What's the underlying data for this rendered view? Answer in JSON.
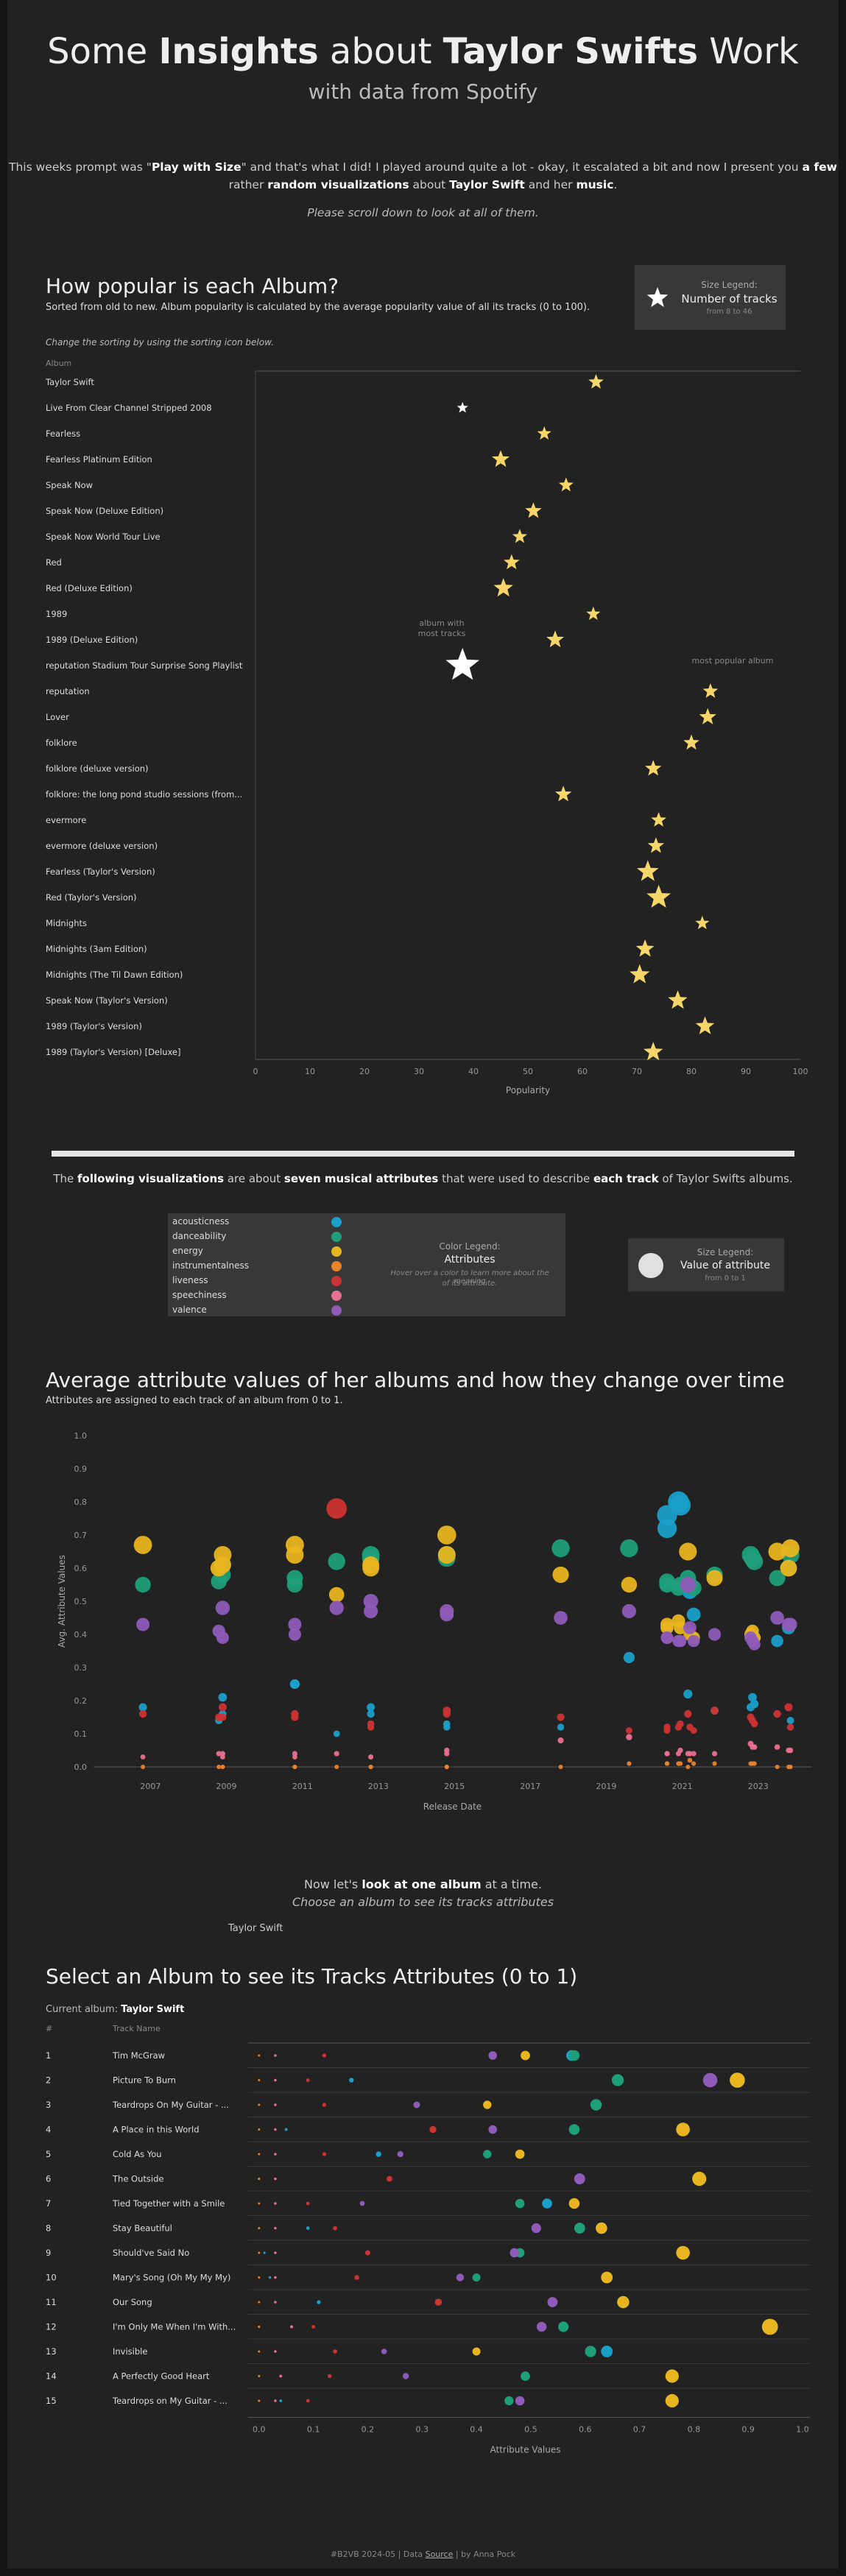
{
  "header": {
    "title_pre": "Some ",
    "title_b1": "Insights",
    "title_mid": " about ",
    "title_b2": "Taylor Swifts",
    "title_post": " Work",
    "subtitle": "with data from Spotify"
  },
  "intro": {
    "l1_a": "This weeks prompt was \"",
    "l1_b": "Play with Size",
    "l1_c": "\" and that's what I did! I played around quite a lot - okay, it escalated a bit and now I present you ",
    "l1_d": "a few",
    "l2_a": "rather ",
    "l2_b": "random visualizations",
    "l2_c": " about ",
    "l2_d": "Taylor Swift",
    "l2_e": " and her ",
    "l2_f": "music",
    "l2_g": ".",
    "hint": "Please scroll down to look at all of them."
  },
  "section1": {
    "title": "How popular is each Album?",
    "desc": "Sorted from old to new. Album popularity is calculated by the average popularity value of all its tracks (0 to 100).",
    "hint": "Change the sorting by using the sorting icon below.",
    "legend": {
      "title": "Size Legend:",
      "main": "Number of tracks",
      "sub": "from 8 to 46"
    },
    "annotation_most_tracks": [
      "album with",
      "most tracks"
    ],
    "annotation_most_popular": "most popular album"
  },
  "attributes": {
    "intro_a": "The ",
    "intro_b": "following visualizations",
    "intro_c": " are about ",
    "intro_d": "seven musical attributes",
    "intro_e": " that were used to describe ",
    "intro_f": "each track",
    "intro_g": " of Taylor Swifts albums.",
    "legend_title": "Color Legend:",
    "legend_main": "Attributes",
    "legend_hint1": "Hover over a color to learn more about the meaning",
    "legend_hint2": "of its attribute.",
    "size_legend": {
      "title": "Size Legend:",
      "main": "Value of attribute",
      "sub": "from 0 to 1"
    },
    "items": [
      {
        "name": "acousticness",
        "color": "#1a9fc9"
      },
      {
        "name": "danceability",
        "color": "#1f9e7a"
      },
      {
        "name": "energy",
        "color": "#e8b520"
      },
      {
        "name": "instrumentalness",
        "color": "#e8832a"
      },
      {
        "name": "liveness",
        "color": "#cc3333"
      },
      {
        "name": "speechiness",
        "color": "#e87090"
      },
      {
        "name": "valence",
        "color": "#8e5bb8"
      }
    ]
  },
  "section2": {
    "title": "Average attribute values of her albums and how they change over time",
    "desc": "Attributes are assigned to each track of an album  from 0 to 1."
  },
  "section3": {
    "intro1_a": "Now let's ",
    "intro1_b": "look at one album",
    "intro1_c": " at a time.",
    "intro2": "Choose an album to see its tracks attributes",
    "selector_value": "Taylor Swift",
    "title": "Select an Album to see its Tracks Attributes (0 to 1)",
    "current_label": "Current album: ",
    "current_value": "Taylor Swift"
  },
  "footer": {
    "a": "#B2VB 2024-05 | Data ",
    "link": "Source",
    "b": " | by Anna Pock"
  },
  "chart_data": [
    {
      "type": "scatter",
      "title": "How popular is each Album?",
      "xlabel": "Popularity",
      "ylabel": "Album",
      "xlim": [
        0,
        100
      ],
      "xticks": [
        0,
        10,
        20,
        30,
        40,
        50,
        60,
        70,
        80,
        90,
        100
      ],
      "albums": [
        {
          "name": "Taylor Swift",
          "popularity": 62.5,
          "tracks": 15
        },
        {
          "name": "Live From Clear Channel Stripped 2008",
          "popularity": 38,
          "tracks": 8
        },
        {
          "name": "Fearless",
          "popularity": 53,
          "tracks": 13
        },
        {
          "name": "Fearless Platinum Edition",
          "popularity": 45,
          "tracks": 19
        },
        {
          "name": "Speak Now",
          "popularity": 57,
          "tracks": 14
        },
        {
          "name": "Speak Now (Deluxe Edition)",
          "popularity": 51,
          "tracks": 17
        },
        {
          "name": "Speak Now World Tour Live",
          "popularity": 48.5,
          "tracks": 14
        },
        {
          "name": "Red",
          "popularity": 47,
          "tracks": 16
        },
        {
          "name": "Red (Deluxe Edition)",
          "popularity": 45.5,
          "tracks": 22
        },
        {
          "name": "1989",
          "popularity": 62,
          "tracks": 13
        },
        {
          "name": "1989 (Deluxe Edition)",
          "popularity": 55,
          "tracks": 19
        },
        {
          "name": "reputation Stadium Tour Surprise Song Playlist",
          "popularity": 38,
          "tracks": 46
        },
        {
          "name": "reputation",
          "popularity": 83.5,
          "tracks": 15
        },
        {
          "name": "Lover",
          "popularity": 83,
          "tracks": 18
        },
        {
          "name": "folklore",
          "popularity": 80,
          "tracks": 16
        },
        {
          "name": "folklore (deluxe version)",
          "popularity": 73,
          "tracks": 17
        },
        {
          "name": "folklore: the long pond studio sessions (from the Disney+ special) [deluxe edition]",
          "popularity": 56.5,
          "tracks": 17
        },
        {
          "name": "evermore",
          "popularity": 74,
          "tracks": 15
        },
        {
          "name": "evermore (deluxe version)",
          "popularity": 73.5,
          "tracks": 17
        },
        {
          "name": "Fearless (Taylor's Version)",
          "popularity": 72,
          "tracks": 26
        },
        {
          "name": "Red (Taylor's Version)",
          "popularity": 74,
          "tracks": 30
        },
        {
          "name": "Midnights",
          "popularity": 82,
          "tracks": 13
        },
        {
          "name": "Midnights (3am Edition)",
          "popularity": 71.5,
          "tracks": 20
        },
        {
          "name": "Midnights (The Til Dawn Edition)",
          "popularity": 70.5,
          "tracks": 23
        },
        {
          "name": "Speak Now (Taylor's Version)",
          "popularity": 77.5,
          "tracks": 22
        },
        {
          "name": "1989 (Taylor's Version)",
          "popularity": 82.5,
          "tracks": 21
        },
        {
          "name": "1989 (Taylor's Version) [Deluxe]",
          "popularity": 73,
          "tracks": 22
        }
      ]
    },
    {
      "type": "scatter",
      "title": "Average attribute values of her albums and how they change over time",
      "xlabel": "Release Date",
      "ylabel": "Avg. Attribute Values",
      "ylim": [
        0,
        1
      ],
      "yticks": [
        0.0,
        0.1,
        0.2,
        0.3,
        0.4,
        0.5,
        0.6,
        0.7,
        0.8,
        0.9,
        1.0
      ],
      "xlim": [
        2005.5,
        2024.4
      ],
      "xticks": [
        2007,
        2009,
        2011,
        2013,
        2015,
        2017,
        2019,
        2021,
        2023
      ],
      "release_years": [
        2006.8,
        2008.9,
        2008.9,
        2008.8,
        2010.8,
        2010.8,
        2011.9,
        2012.8,
        2012.8,
        2014.8,
        2014.8,
        2017.8,
        2019.6,
        2020.6,
        2020.6,
        2020.9,
        2020.95,
        2021.15,
        2021.2,
        2021.3,
        2021.85,
        2022.8,
        2022.85,
        2022.9,
        2023.5,
        2023.8,
        2023.85
      ],
      "series": [
        {
          "name": "acousticness",
          "values": [
            0.18,
            0.16,
            0.21,
            0.14,
            0.25,
            0.25,
            0.1,
            0.16,
            0.18,
            0.12,
            0.13,
            0.12,
            0.33,
            0.72,
            0.76,
            0.8,
            0.79,
            0.22,
            0.53,
            0.46,
            0.17,
            0.18,
            0.21,
            0.19,
            0.38,
            0.42,
            0.14
          ]
        },
        {
          "name": "danceability",
          "values": [
            0.55,
            0.58,
            0.61,
            0.56,
            0.55,
            0.57,
            0.62,
            0.63,
            0.64,
            0.64,
            0.63,
            0.66,
            0.66,
            0.56,
            0.55,
            0.54,
            0.55,
            0.57,
            0.55,
            0.54,
            0.58,
            0.64,
            0.63,
            0.62,
            0.57,
            0.6,
            0.64
          ]
        },
        {
          "name": "energy",
          "values": [
            0.67,
            0.61,
            0.64,
            0.6,
            0.67,
            0.64,
            0.52,
            0.61,
            0.6,
            0.7,
            0.64,
            0.58,
            0.55,
            0.42,
            0.43,
            0.44,
            0.42,
            0.65,
            0.4,
            0.39,
            0.57,
            0.4,
            0.41,
            0.39,
            0.65,
            0.6,
            0.66
          ]
        },
        {
          "name": "instrumentalness",
          "values": [
            0.0,
            0.0,
            0.0,
            0.0,
            0.0,
            0.0,
            0.0,
            0.0,
            0.0,
            0.0,
            0.0,
            0.0,
            0.01,
            0.01,
            0.01,
            0.01,
            0.01,
            0.0,
            0.02,
            0.01,
            0.01,
            0.01,
            0.01,
            0.01,
            0.0,
            0.0,
            0.0
          ]
        },
        {
          "name": "liveness",
          "values": [
            0.16,
            0.15,
            0.18,
            0.15,
            0.15,
            0.16,
            0.78,
            0.13,
            0.12,
            0.17,
            0.16,
            0.15,
            0.11,
            0.11,
            0.12,
            0.12,
            0.13,
            0.16,
            0.12,
            0.11,
            0.17,
            0.15,
            0.14,
            0.13,
            0.16,
            0.18,
            0.12
          ]
        },
        {
          "name": "speechiness",
          "values": [
            0.03,
            0.04,
            0.03,
            0.04,
            0.04,
            0.03,
            0.04,
            0.03,
            0.03,
            0.05,
            0.04,
            0.08,
            0.09,
            0.04,
            0.04,
            0.04,
            0.05,
            0.04,
            0.04,
            0.04,
            0.04,
            0.07,
            0.06,
            0.06,
            0.06,
            0.05,
            0.05
          ]
        },
        {
          "name": "valence",
          "values": [
            0.43,
            0.48,
            0.39,
            0.41,
            0.43,
            0.4,
            0.48,
            0.5,
            0.47,
            0.46,
            0.47,
            0.45,
            0.47,
            0.39,
            0.39,
            0.38,
            0.38,
            0.55,
            0.42,
            0.38,
            0.4,
            0.39,
            0.38,
            0.37,
            0.45,
            0.43,
            0.43
          ]
        }
      ]
    },
    {
      "type": "scatter",
      "title": "Select an Album to see its Tracks Attributes (0 to 1)",
      "xlabel": "Attribute Values",
      "ylabel": "Track Name",
      "xlim": [
        -0.02,
        1.0
      ],
      "xticks": [
        0.0,
        0.1,
        0.2,
        0.3,
        0.4,
        0.5,
        0.6,
        0.7,
        0.8,
        0.9,
        1.0
      ],
      "col_num_header": "#",
      "col_name_header": "Track Name",
      "tracks": [
        {
          "num": 1,
          "name": "Tim McGraw",
          "acousticness": 0.575,
          "danceability": 0.58,
          "energy": 0.49,
          "instrumentalness": 0.0,
          "liveness": 0.12,
          "speechiness": 0.03,
          "valence": 0.43
        },
        {
          "num": 2,
          "name": "Picture To Burn",
          "acousticness": 0.17,
          "danceability": 0.66,
          "energy": 0.88,
          "instrumentalness": 0.0,
          "liveness": 0.09,
          "speechiness": 0.03,
          "valence": 0.83
        },
        {
          "num": 3,
          "name": "Teardrops On My Guitar - Radio Single Remix",
          "acousticness": 0.29,
          "danceability": 0.62,
          "energy": 0.42,
          "instrumentalness": 0.0,
          "liveness": 0.12,
          "speechiness": 0.03,
          "valence": 0.29
        },
        {
          "num": 4,
          "name": "A Place in this World",
          "acousticness": 0.05,
          "danceability": 0.58,
          "energy": 0.78,
          "instrumentalness": 0.0,
          "liveness": 0.32,
          "speechiness": 0.03,
          "valence": 0.43
        },
        {
          "num": 5,
          "name": "Cold As You",
          "acousticness": 0.22,
          "danceability": 0.42,
          "energy": 0.48,
          "instrumentalness": 0.0,
          "liveness": 0.12,
          "speechiness": 0.03,
          "valence": 0.26
        },
        {
          "num": 6,
          "name": "The Outside",
          "acousticness": 0.0,
          "danceability": 0.59,
          "energy": 0.81,
          "instrumentalness": 0.0,
          "liveness": 0.24,
          "speechiness": 0.03,
          "valence": 0.59
        },
        {
          "num": 7,
          "name": "Tied Together with a Smile",
          "acousticness": 0.53,
          "danceability": 0.48,
          "energy": 0.58,
          "instrumentalness": 0.0,
          "liveness": 0.09,
          "speechiness": 0.03,
          "valence": 0.19
        },
        {
          "num": 8,
          "name": "Stay Beautiful",
          "acousticness": 0.09,
          "danceability": 0.59,
          "energy": 0.63,
          "instrumentalness": 0.0,
          "liveness": 0.14,
          "speechiness": 0.03,
          "valence": 0.51
        },
        {
          "num": 9,
          "name": "Should've Said No",
          "acousticness": 0.01,
          "danceability": 0.48,
          "energy": 0.78,
          "instrumentalness": 0.0,
          "liveness": 0.2,
          "speechiness": 0.03,
          "valence": 0.47
        },
        {
          "num": 10,
          "name": "Mary's Song (Oh My My My)",
          "acousticness": 0.02,
          "danceability": 0.4,
          "energy": 0.64,
          "instrumentalness": 0.0,
          "liveness": 0.18,
          "speechiness": 0.03,
          "valence": 0.37
        },
        {
          "num": 11,
          "name": "Our Song",
          "acousticness": 0.11,
          "danceability": 0.67,
          "energy": 0.67,
          "instrumentalness": 0.0,
          "liveness": 0.33,
          "speechiness": 0.03,
          "valence": 0.54
        },
        {
          "num": 12,
          "name": "I'm Only Me When I'm With You",
          "acousticness": 0.0,
          "danceability": 0.56,
          "energy": 0.94,
          "instrumentalness": 0.0,
          "liveness": 0.1,
          "speechiness": 0.06,
          "valence": 0.52
        },
        {
          "num": 13,
          "name": "Invisible",
          "acousticness": 0.64,
          "danceability": 0.61,
          "energy": 0.4,
          "instrumentalness": 0.0,
          "liveness": 0.14,
          "speechiness": 0.03,
          "valence": 0.23
        },
        {
          "num": 14,
          "name": "A Perfectly Good Heart",
          "acousticness": 0.0,
          "danceability": 0.49,
          "energy": 0.76,
          "instrumentalness": 0.0,
          "liveness": 0.13,
          "speechiness": 0.04,
          "valence": 0.27
        },
        {
          "num": 15,
          "name": "Teardrops on My Guitar - Pop Version",
          "acousticness": 0.04,
          "danceability": 0.46,
          "energy": 0.76,
          "instrumentalness": 0.0,
          "liveness": 0.09,
          "speechiness": 0.03,
          "valence": 0.48
        }
      ]
    }
  ]
}
